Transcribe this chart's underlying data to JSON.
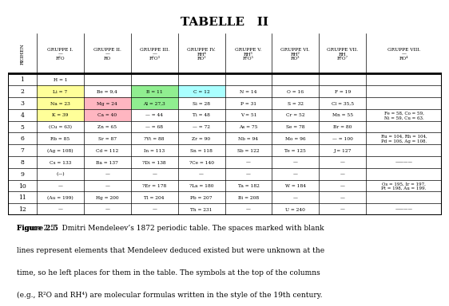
{
  "title": "TABELLE   II",
  "title_fontsize": 11,
  "fig_width": 5.43,
  "fig_height": 3.67,
  "background_color": "#ffffff",
  "header_row": {
    "reihen_label": "REIHEN",
    "cols": [
      {
        "label": "GRUPPE I.\n—\nR²O",
        "sub": ""
      },
      {
        "label": "GRUPPE II.\n—\nRO",
        "sub": ""
      },
      {
        "label": "GRUPPE III.\n—\nR²O³",
        "sub": ""
      },
      {
        "label": "GRUPPE IV.\nRH⁴\nRO²",
        "sub": ""
      },
      {
        "label": "GRUPPE V.\nRH³\nR²O⁵",
        "sub": ""
      },
      {
        "label": "GRUPPE VI.\nRH²\nRO³",
        "sub": ""
      },
      {
        "label": "GRUPPE VII.\nRH\nR²O⁷",
        "sub": ""
      },
      {
        "label": "GRUPPE VIII.\n—\nRO⁴",
        "sub": ""
      }
    ]
  },
  "rows": [
    {
      "reihe": "1",
      "data": [
        "H = 1",
        "",
        "",
        "",
        "",
        "",
        "",
        ""
      ]
    },
    {
      "reihe": "2",
      "data": [
        "Li = 7",
        "Be = 9,4",
        "B = 11",
        "C = 12",
        "N = 14",
        "O = 16",
        "F = 19",
        ""
      ]
    },
    {
      "reihe": "3",
      "data": [
        "Na = 23",
        "Mg = 24",
        "Al = 27,3",
        "Si = 28",
        "P = 31",
        "S = 32",
        "Cl = 35,5",
        ""
      ]
    },
    {
      "reihe": "4",
      "data": [
        "K = 39",
        "Ca = 40",
        "— = 44",
        "Ti = 48",
        "V = 51",
        "Cr = 52",
        "Mn = 55",
        "Fe = 58, Co = 59,\nNi = 59, Cu = 63."
      ]
    },
    {
      "reihe": "5",
      "data": [
        "(Cu = 63)",
        "Zn = 65",
        "— = 68",
        "— = 72",
        "As = 75",
        "Se = 78",
        "Br = 80",
        ""
      ]
    },
    {
      "reihe": "6",
      "data": [
        "Rb = 85",
        "Sr = 87",
        "?Yt = 88",
        "Zr = 90",
        "Nb = 94",
        "Mo = 96",
        "— = 100",
        "Ru = 104, Rh = 104,\nPd = 106, Ag = 108."
      ]
    },
    {
      "reihe": "7",
      "data": [
        "(Ag = 108)",
        "Cd = 112",
        "In = 113",
        "Sn = 118",
        "Sb = 122",
        "Te = 125",
        "J = 127",
        ""
      ]
    },
    {
      "reihe": "8",
      "data": [
        "Cs = 133",
        "Ba = 137",
        "?Di = 138",
        "?Ce = 140",
        "—",
        "—",
        "—",
        "————"
      ]
    },
    {
      "reihe": "9",
      "data": [
        "(—)",
        "—",
        "—",
        "—",
        "—",
        "—",
        "—",
        ""
      ]
    },
    {
      "reihe": "10",
      "data": [
        "—",
        "—",
        "?Er = 178",
        "?La = 180",
        "Ta = 182",
        "W = 184",
        "—",
        "Os = 195, Ir = 197,\nPt = 198, Au = 199."
      ]
    },
    {
      "reihe": "11",
      "data": [
        "(Au = 199)",
        "Hg = 200",
        "Tl = 204",
        "Pb = 207",
        "Bi = 208",
        "—",
        "—",
        ""
      ]
    },
    {
      "reihe": "12",
      "data": [
        "—",
        "—",
        "—",
        "Th = 231",
        "—",
        "U = 240",
        "—",
        "————"
      ]
    }
  ],
  "cell_colors": {
    "2_0": "#ffff99",
    "2_1": "#ffffff",
    "2_2": "#90ee90",
    "2_3": "#aaffff",
    "3_0": "#ffff99",
    "3_1": "#ffb6c1",
    "3_2": "#90ee90",
    "4_0": "#ffff99",
    "4_1": "#ffb6c1"
  },
  "caption": "Figure 2.5   Dmitri Mendeleev’s 1872 periodic table. The spaces marked with blank\nlines represent elements that Mendeleev deduced existed but were unknown at the\ntime, so he left places for them in the table. The symbols at the top of the columns\n(e.g., R²O and RH⁴) are molecular formulas written in the style of the 19th century."
}
